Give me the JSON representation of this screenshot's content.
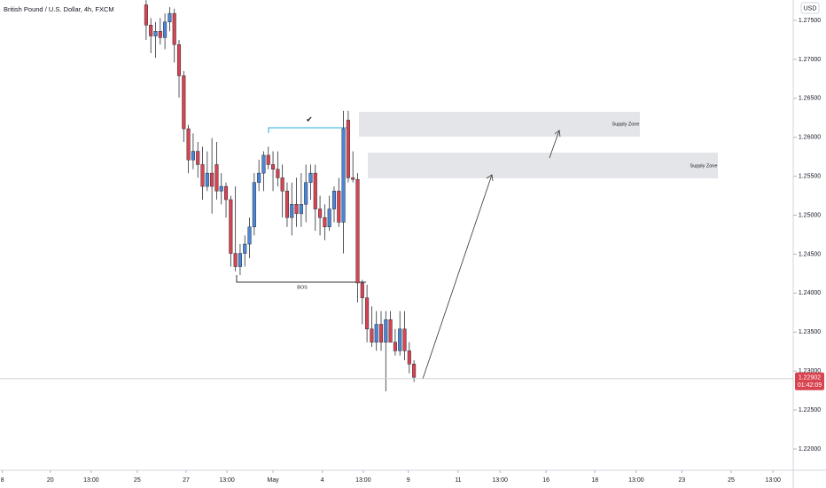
{
  "chart_data": {
    "type": "candlestick",
    "title": "British Pound / U.S. Dollar, 4h, FXCM",
    "currency": "USD",
    "open": [
      1.277,
      1.2744,
      1.273,
      1.2736,
      1.2728,
      1.2748,
      1.2759,
      1.2719,
      1.2679,
      1.2611,
      1.2571,
      1.2582,
      1.2565,
      1.2537,
      1.2554,
      1.2565,
      1.2531,
      1.2537,
      1.252,
      1.2451,
      1.2434,
      1.2451,
      1.2463,
      1.2485,
      1.2542,
      1.2554,
      1.2577,
      1.2565,
      1.2559,
      1.2548,
      1.2531,
      1.2497,
      1.2514,
      1.2502,
      1.2514,
      1.2542,
      1.2554,
      1.2508,
      1.2497,
      1.2485,
      1.2508,
      1.2531,
      1.2491,
      1.2622,
      1.2548,
      1.2546,
      1.2413,
      1.2394,
      1.2354,
      1.2337,
      1.236,
      1.2337,
      1.2366,
      1.2337,
      1.2326,
      1.2354,
      1.2326,
      1.2309
    ],
    "high": [
      1.2776,
      1.2753,
      1.2748,
      1.2753,
      1.2759,
      1.2767,
      1.2765,
      1.2725,
      1.2685,
      1.2616,
      1.2605,
      1.2594,
      1.2588,
      1.2582,
      1.2599,
      1.2594,
      1.2554,
      1.2542,
      1.2525,
      1.2537,
      1.2463,
      1.2474,
      1.2497,
      1.2554,
      1.2571,
      1.2582,
      1.2588,
      1.2582,
      1.2582,
      1.2565,
      1.2542,
      1.2542,
      1.2548,
      1.2554,
      1.2565,
      1.2565,
      1.2565,
      1.2525,
      1.2514,
      1.2525,
      1.2537,
      1.2548,
      1.2634,
      1.2634,
      1.2582,
      1.2554,
      1.2417,
      1.2411,
      1.2383,
      1.2377,
      1.2377,
      1.2377,
      1.2377,
      1.2354,
      1.2377,
      1.2377,
      1.2337,
      1.2314
    ],
    "low": [
      1.2725,
      1.2708,
      1.2702,
      1.2719,
      1.2713,
      1.2736,
      1.2696,
      1.2651,
      1.2594,
      1.2554,
      1.2559,
      1.2548,
      1.252,
      1.2531,
      1.2502,
      1.252,
      1.2514,
      1.2497,
      1.2434,
      1.2428,
      1.2423,
      1.2434,
      1.2445,
      1.2474,
      1.2531,
      1.2531,
      1.2559,
      1.2531,
      1.2537,
      1.2497,
      1.2485,
      1.2474,
      1.2485,
      1.2485,
      1.2491,
      1.252,
      1.248,
      1.2474,
      1.2468,
      1.248,
      1.2491,
      1.2485,
      1.2451,
      1.2542,
      1.2542,
      1.2388,
      1.236,
      1.2337,
      1.2331,
      1.2326,
      1.2326,
      1.2274,
      1.2337,
      1.232,
      1.232,
      1.2314,
      1.2297,
      1.2286
    ],
    "close": [
      1.2744,
      1.273,
      1.2736,
      1.2728,
      1.2748,
      1.2759,
      1.2719,
      1.2679,
      1.2611,
      1.2571,
      1.2582,
      1.2565,
      1.2537,
      1.2554,
      1.2537,
      1.2531,
      1.2537,
      1.252,
      1.2451,
      1.2434,
      1.2451,
      1.2463,
      1.2485,
      1.2542,
      1.2554,
      1.2577,
      1.2565,
      1.2559,
      1.2548,
      1.2531,
      1.2497,
      1.2514,
      1.2502,
      1.2514,
      1.2542,
      1.2554,
      1.2508,
      1.2497,
      1.2485,
      1.2508,
      1.2531,
      1.2491,
      1.2611,
      1.2548,
      1.2546,
      1.2413,
      1.2394,
      1.2354,
      1.2337,
      1.236,
      1.2337,
      1.2366,
      1.2337,
      1.2326,
      1.2354,
      1.2326,
      1.2309,
      1.2292
    ],
    "up_color": "#4a86d8",
    "down_color": "#d9434f",
    "xlim": [
      -31.1,
      137.7
    ],
    "xticks": [
      {
        "value": -30.6,
        "label": "8"
      },
      {
        "value": -20.4,
        "label": "20"
      },
      {
        "value": -11.7,
        "label": "13:00"
      },
      {
        "value": -1.9,
        "label": "25"
      },
      {
        "value": 8.5,
        "label": "27"
      },
      {
        "value": 17.2,
        "label": "13:00"
      },
      {
        "value": 27,
        "label": "May"
      },
      {
        "value": 37.5,
        "label": "4"
      },
      {
        "value": 46.2,
        "label": "13:00"
      },
      {
        "value": 55.8,
        "label": "9"
      },
      {
        "value": 66.4,
        "label": "11"
      },
      {
        "value": 75.3,
        "label": "13:00"
      },
      {
        "value": 85.1,
        "label": "16"
      },
      {
        "value": 95.5,
        "label": "18"
      },
      {
        "value": 104.3,
        "label": "13:00"
      },
      {
        "value": 114,
        "label": "23"
      },
      {
        "value": 124.5,
        "label": "25"
      },
      {
        "value": 133.4,
        "label": "13:00"
      }
    ],
    "ylim": [
      1.21727,
      1.27762
    ],
    "yticks": [
      {
        "value": 1.275,
        "label": "1.27500"
      },
      {
        "value": 1.27,
        "label": "1.27000"
      },
      {
        "value": 1.265,
        "label": "1.26500"
      },
      {
        "value": 1.26,
        "label": "1.26000"
      },
      {
        "value": 1.255,
        "label": "1.25500"
      },
      {
        "value": 1.25,
        "label": "1.25000"
      },
      {
        "value": 1.245,
        "label": "1.24500"
      },
      {
        "value": 1.24,
        "label": "1.24000"
      },
      {
        "value": 1.235,
        "label": "1.23500"
      },
      {
        "value": 1.23,
        "label": "1.23000"
      },
      {
        "value": 1.225,
        "label": "1.22500"
      },
      {
        "value": 1.22,
        "label": "1.22000"
      }
    ],
    "last_price": {
      "value": 1.22902,
      "label": "1.22902"
    },
    "countdown": "01:42:09",
    "annotations": {
      "zone_upper": "Supply Zone",
      "zone_lower": "Supply Zone",
      "bos": "BOS",
      "check": "✔"
    }
  }
}
